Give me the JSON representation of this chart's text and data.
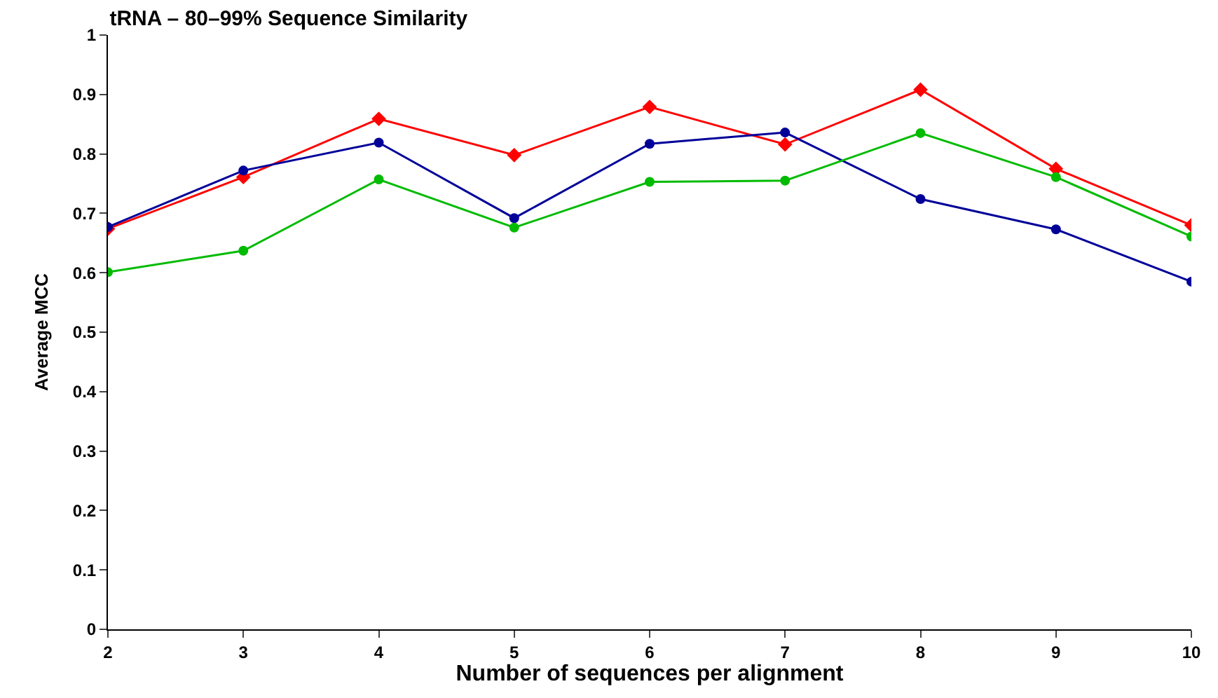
{
  "chart_data": {
    "type": "line",
    "title": "tRNA – 80–99% Sequence Similarity",
    "xlabel": "Number of sequences per alignment",
    "ylabel": "Average MCC",
    "x": [
      2,
      3,
      4,
      5,
      6,
      7,
      8,
      9,
      10
    ],
    "series": [
      {
        "color": "#ff0000",
        "marker": "diamond",
        "values": [
          0.674,
          0.761,
          0.859,
          0.798,
          0.879,
          0.816,
          0.908,
          0.775,
          0.68
        ]
      },
      {
        "color": "#000099",
        "marker": "circle",
        "values": [
          0.677,
          0.772,
          0.819,
          0.692,
          0.817,
          0.836,
          0.724,
          0.673,
          0.585
        ]
      },
      {
        "color": "#00bb00",
        "marker": "circle",
        "values": [
          0.601,
          0.637,
          0.757,
          0.676,
          0.753,
          0.755,
          0.835,
          0.761,
          0.661
        ]
      }
    ],
    "xlim": [
      2,
      10
    ],
    "xticks": [
      2,
      3,
      4,
      5,
      6,
      7,
      8,
      9,
      10
    ],
    "ylim": [
      0,
      1
    ],
    "yticks": [
      0,
      0.1,
      0.2,
      0.3,
      0.4,
      0.5,
      0.6,
      0.7,
      0.8,
      0.9,
      1
    ],
    "legend": false
  }
}
